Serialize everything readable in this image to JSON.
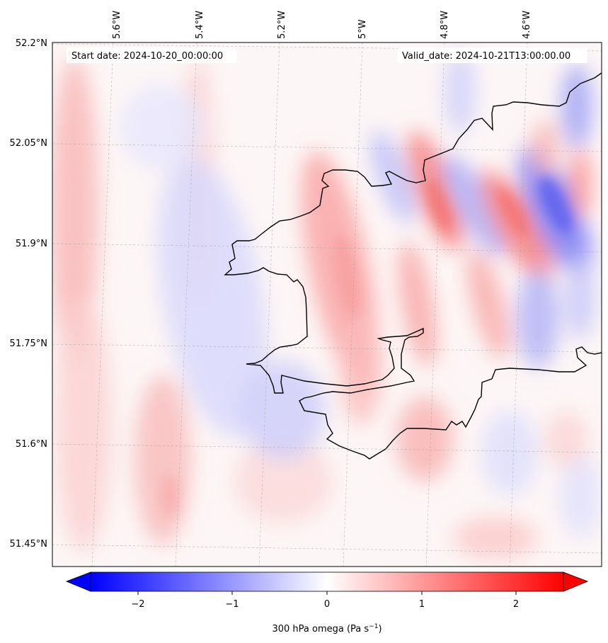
{
  "header": {
    "start_label": "Start date: 2024-10-20_00:00:00",
    "valid_label": "Valid_date: 2024-10-21T13:00:00.00"
  },
  "map": {
    "lon_labels": [
      "5.6°W",
      "5.4°W",
      "5.2°W",
      "5°W",
      "4.8°W",
      "4.6°W"
    ],
    "lat_labels": [
      "52.2°N",
      "52.05°N",
      "51.9°N",
      "51.75°N",
      "51.6°N",
      "51.45°N"
    ],
    "field": "300 hPa omega",
    "colormap": "bwr",
    "negative_color": "#0000ff",
    "positive_color": "#ff0000",
    "zero_color": "#ffffff",
    "coastline_color": "#000000"
  },
  "colorbar": {
    "ticks": [
      "−2",
      "−1",
      "0",
      "1",
      "2"
    ],
    "label_main": "300 hPa omega (Pa s",
    "label_sup": "−1",
    "label_end": ")",
    "extend": "both",
    "range": [
      -2.5,
      2.5
    ]
  }
}
